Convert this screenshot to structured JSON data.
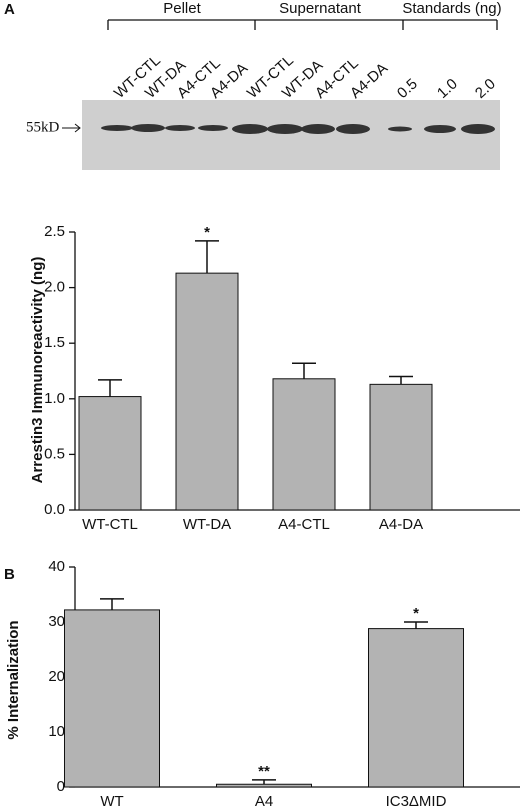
{
  "blot": {
    "panel_label": "A",
    "groups": [
      "Pellet",
      "Supernatant",
      "Standards (ng)"
    ],
    "lanes": [
      "WT-CTL",
      "WT-DA",
      "A4-CTL",
      "A4-DA",
      "WT-CTL",
      "WT-DA",
      "A4-CTL",
      "A4-DA",
      "0.5",
      "1.0",
      "2.0"
    ],
    "marker": "55kD"
  },
  "chart_data": [
    {
      "type": "bar",
      "ylabel": "Arrestin3 Immunoreactivity (ng)",
      "categories": [
        "WT-CTL",
        "WT-DA",
        "A4-CTL",
        "A4-DA"
      ],
      "values": [
        1.02,
        2.13,
        1.18,
        1.13
      ],
      "errors": [
        0.15,
        0.29,
        0.14,
        0.07
      ],
      "annotations": [
        null,
        "*",
        null,
        null
      ],
      "color": "#b3b3b3",
      "ylim": [
        0,
        2.5
      ],
      "yticks": [
        {
          "value": 0,
          "label": "0.0"
        },
        0.5,
        {
          "value": 1,
          "label": "1.0"
        },
        1.5,
        {
          "value": 2,
          "label": "2.0"
        },
        2.5
      ]
    },
    {
      "type": "bar",
      "panel_label": "B",
      "ylabel": "% Internalization",
      "categories": [
        "WT",
        "A4",
        "IC3ΔMID"
      ],
      "values": [
        32.2,
        0.5,
        28.8
      ],
      "errors": [
        2.0,
        0.8,
        1.2
      ],
      "annotations": [
        null,
        "**",
        "*"
      ],
      "color": "#b3b3b3",
      "ylim": [
        0,
        40
      ],
      "yticks": [
        0,
        10,
        20,
        30,
        40
      ]
    }
  ]
}
